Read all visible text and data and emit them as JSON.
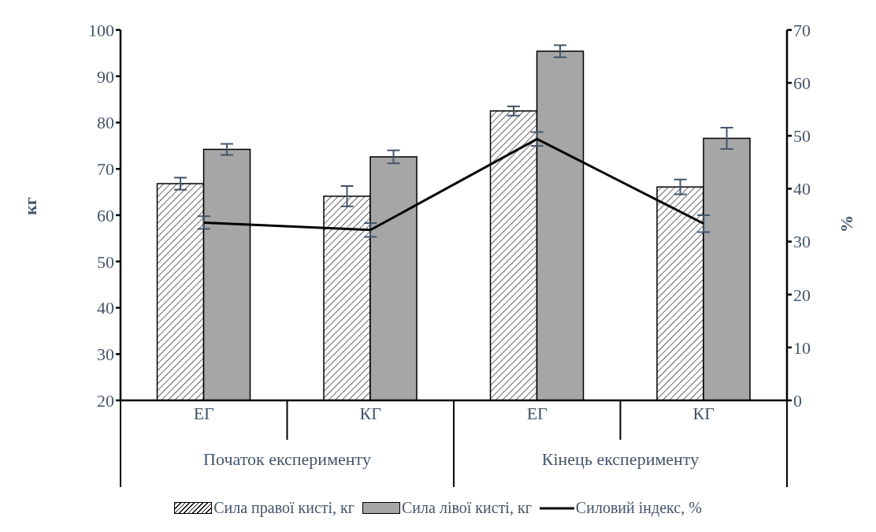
{
  "chart_data": {
    "type": "bar",
    "categories": [
      "ЕГ",
      "КГ",
      "ЕГ",
      "КГ"
    ],
    "annotations": [
      "Початок експерименту",
      "Кінець експерименту"
    ],
    "ylabel": "кг",
    "y2label": "%",
    "series": [
      {
        "name": "Сила правої кисті, кг",
        "color": "#000000",
        "values": [
          66.8,
          64.1,
          82.5,
          66.1
        ],
        "errors": [
          1.3,
          2.2,
          1.0,
          1.6
        ]
      },
      {
        "name": "Сила лівої кисті, кг",
        "color": "#a6a6a6",
        "values": [
          74.2,
          72.6,
          95.4,
          76.6
        ],
        "errors": [
          1.2,
          1.4,
          1.3,
          2.3
        ]
      },
      {
        "name": "Силовий індекс, %",
        "type": "line",
        "axis": "y2",
        "color": "#000000",
        "values": [
          33.6,
          32.2,
          49.4,
          33.4
        ],
        "errors": [
          1.2,
          1.3,
          1.3,
          1.6
        ]
      }
    ],
    "ylim": [
      20,
      100
    ],
    "yticks": [
      20,
      30,
      40,
      50,
      60,
      70,
      80,
      90,
      100
    ],
    "y2lim": [
      0,
      70
    ],
    "y2ticks": [
      0,
      10,
      20,
      30,
      40,
      50,
      60,
      70
    ],
    "grid": false,
    "legend": "bottom",
    "marker": "none"
  }
}
